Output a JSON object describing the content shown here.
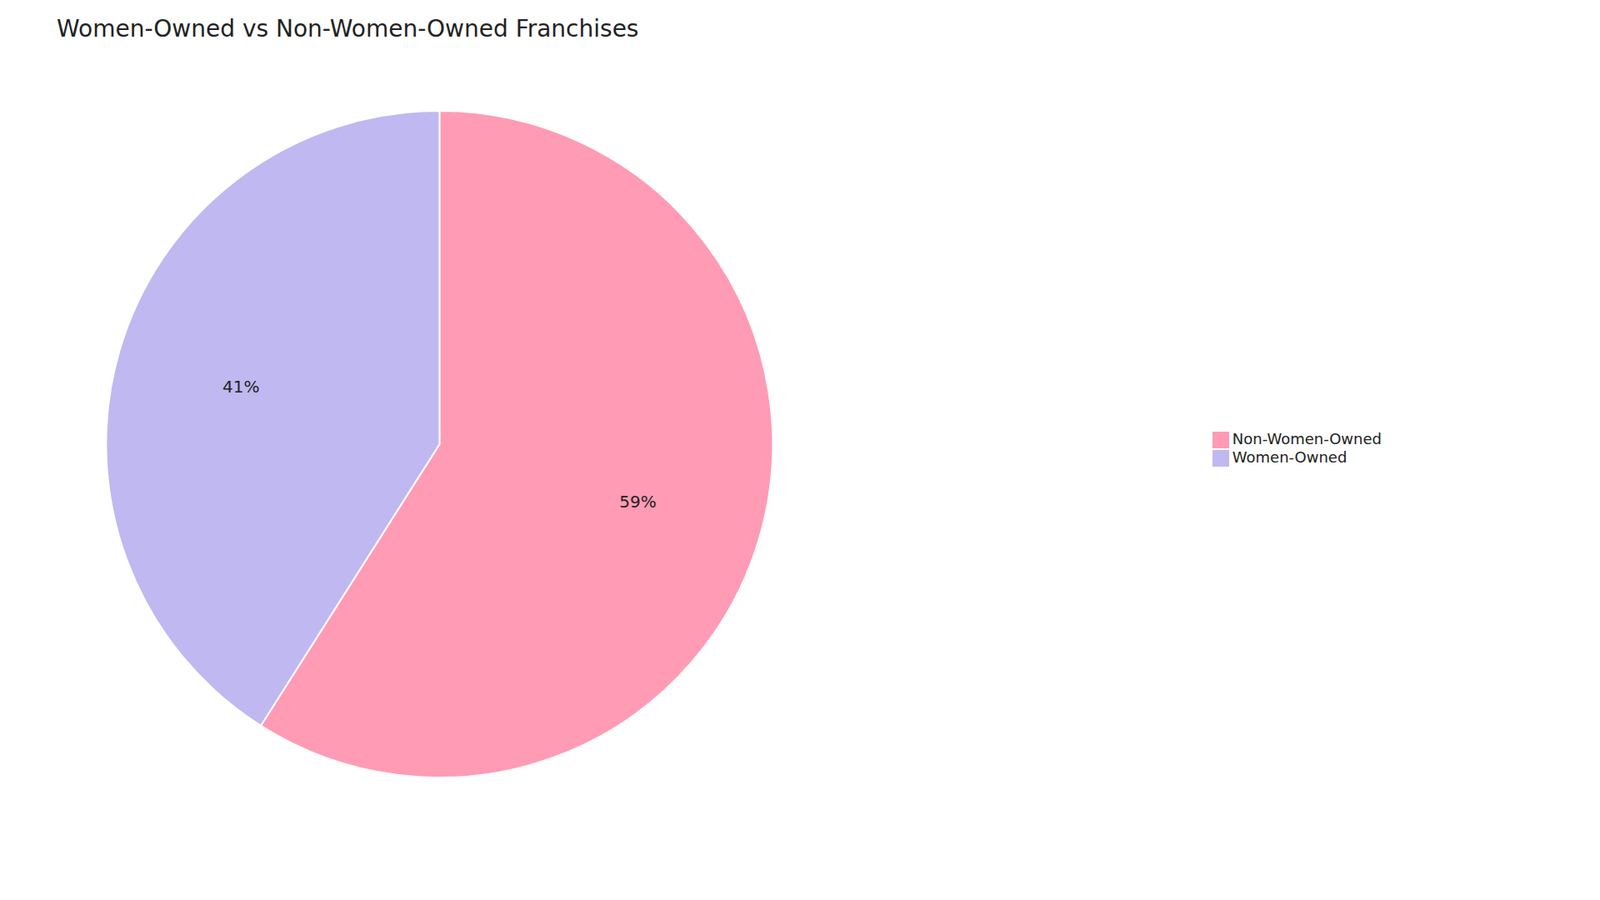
{
  "chart_data": {
    "type": "pie",
    "title": "Women-Owned vs Non-Women-Owned Franchises",
    "categories": [
      "Non-Women-Owned",
      "Women-Owned"
    ],
    "values": [
      59,
      41
    ],
    "value_labels": [
      "59%",
      "41%"
    ],
    "colors": [
      "#FF9BB5",
      "#C0B8F0"
    ],
    "data_labels": true,
    "legend": "right"
  }
}
